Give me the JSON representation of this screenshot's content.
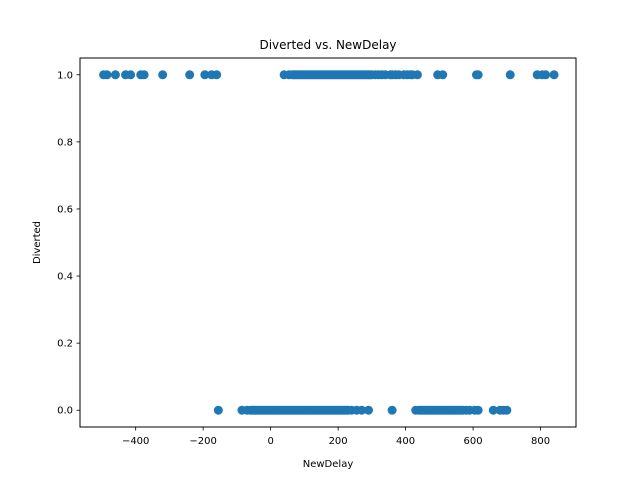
{
  "chart_data": {
    "type": "scatter",
    "title": "Diverted vs. NewDelay",
    "xlabel": "NewDelay",
    "ylabel": "Diverted",
    "xlim": [
      -565,
      905
    ],
    "ylim": [
      -0.05,
      1.05
    ],
    "xticks": [
      -400,
      -200,
      0,
      200,
      400,
      600,
      800
    ],
    "yticks": [
      0.0,
      0.2,
      0.4,
      0.6,
      0.8,
      1.0
    ],
    "xtick_labels": [
      "−400",
      "−200",
      "0",
      "200",
      "400",
      "600",
      "800"
    ],
    "ytick_labels": [
      "0.0",
      "0.2",
      "0.4",
      "0.6",
      "0.8",
      "1.0"
    ],
    "grid": false,
    "marker_color": "#1f77b4",
    "series": [
      {
        "points_y1": [
          -495,
          -485,
          -460,
          -430,
          -415,
          -385,
          -375,
          -320,
          -240,
          -195,
          -175,
          -160,
          40,
          55,
          65,
          70,
          75,
          80,
          85,
          90,
          95,
          100,
          105,
          110,
          115,
          120,
          125,
          130,
          135,
          140,
          145,
          150,
          155,
          160,
          165,
          170,
          175,
          180,
          185,
          190,
          195,
          200,
          205,
          210,
          215,
          220,
          225,
          230,
          235,
          240,
          245,
          250,
          255,
          260,
          265,
          270,
          275,
          280,
          285,
          290,
          295,
          300,
          310,
          320,
          330,
          340,
          355,
          360,
          370,
          380,
          395,
          405,
          415,
          420,
          435,
          495,
          510,
          610,
          615,
          710,
          790,
          805,
          815,
          840
        ],
        "points_y0": [
          -155,
          -85,
          -70,
          -60,
          -55,
          -50,
          -45,
          -40,
          -35,
          -30,
          -25,
          -20,
          -15,
          -10,
          -5,
          0,
          5,
          10,
          15,
          20,
          25,
          30,
          35,
          40,
          45,
          50,
          55,
          60,
          65,
          70,
          75,
          80,
          85,
          90,
          95,
          100,
          105,
          110,
          115,
          120,
          125,
          130,
          135,
          140,
          145,
          150,
          155,
          160,
          165,
          170,
          175,
          180,
          185,
          190,
          195,
          200,
          205,
          210,
          215,
          220,
          225,
          230,
          240,
          255,
          270,
          290,
          360,
          430,
          440,
          445,
          450,
          455,
          460,
          465,
          470,
          475,
          480,
          485,
          490,
          495,
          500,
          505,
          510,
          515,
          520,
          525,
          530,
          535,
          540,
          545,
          550,
          555,
          560,
          565,
          570,
          580,
          590,
          605,
          615,
          660,
          680,
          690,
          700
        ]
      }
    ]
  }
}
